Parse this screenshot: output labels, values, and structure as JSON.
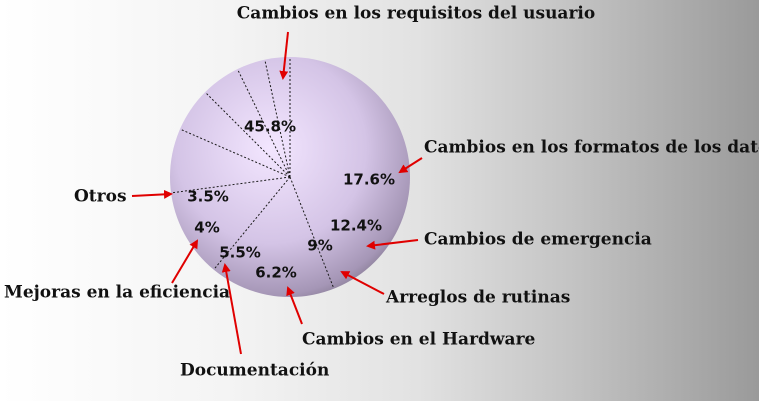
{
  "chart_data": {
    "type": "pie",
    "title": "",
    "slices": [
      {
        "label": "Cambios en los requisitos del usuario",
        "value": 45.8,
        "value_label": "45.8%"
      },
      {
        "label": "Cambios en los formatos de los datos",
        "value": 17.6,
        "value_label": "17.6%"
      },
      {
        "label": "Cambios de emergencia",
        "value": 12.4,
        "value_label": "12.4%"
      },
      {
        "label": "Arreglos de rutinas",
        "value": 9,
        "value_label": "9%"
      },
      {
        "label": "Cambios en el Hardware",
        "value": 6.2,
        "value_label": "6.2%"
      },
      {
        "label": "Documentación",
        "value": 5.5,
        "value_label": "5.5%"
      },
      {
        "label": "Mejoras en la eficiencia",
        "value": 4,
        "value_label": "4%"
      },
      {
        "label": "Otros",
        "value": 3.5,
        "value_label": "3.5%"
      }
    ],
    "legend": "none",
    "leader_arrows": true
  },
  "colors": {
    "slice_light": "#f1e1ff",
    "slice_dark": "#7d7289",
    "divider": "#1a1a1a",
    "arrow": "#e00000"
  }
}
